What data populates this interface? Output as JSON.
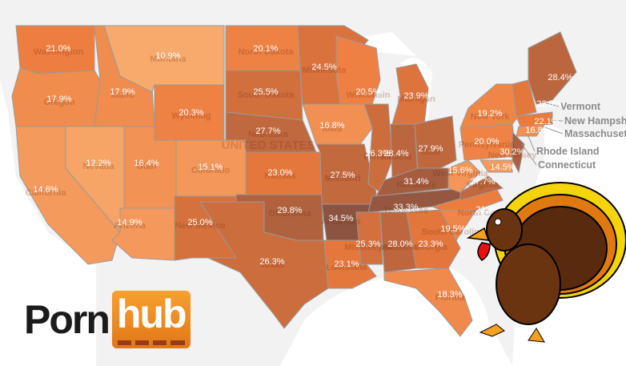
{
  "map": {
    "country_label": "UNITED STATES",
    "color_scale": {
      "low": "#f8aa6d",
      "mid": "#ec7a3c",
      "high": "#8c5340"
    },
    "states": [
      {
        "name": "Washington",
        "value": "21.0%"
      },
      {
        "name": "Oregon",
        "value": "17.9%"
      },
      {
        "name": "California",
        "value": "14.6%"
      },
      {
        "name": "Idaho",
        "value": "17.9%"
      },
      {
        "name": "Montana",
        "value": "10.9%"
      },
      {
        "name": "Wyoming",
        "value": "20.3%"
      },
      {
        "name": "Nevada",
        "value": "12.2%"
      },
      {
        "name": "Utah",
        "value": "16.4%"
      },
      {
        "name": "Colorado",
        "value": "15.1%"
      },
      {
        "name": "Arizona",
        "value": "14.9%"
      },
      {
        "name": "New Mexico",
        "value": "25.0%"
      },
      {
        "name": "North Dakota",
        "value": "20.1%"
      },
      {
        "name": "South Dakota",
        "value": "25.5%"
      },
      {
        "name": "Nebraska",
        "value": "27.7%"
      },
      {
        "name": "Kansas",
        "value": "23.0%"
      },
      {
        "name": "Oklahoma",
        "value": "29.8%"
      },
      {
        "name": "Texas",
        "value": "26.3%"
      },
      {
        "name": "Minnesota",
        "value": "24.5%"
      },
      {
        "name": "Iowa",
        "value": "16.8%"
      },
      {
        "name": "Missouri",
        "value": "27.5%"
      },
      {
        "name": "Arkansas",
        "value": "34.5%"
      },
      {
        "name": "Louisiana",
        "value": "23.1%"
      },
      {
        "name": "Wisconsin",
        "value": "20.5%"
      },
      {
        "name": "Illinois",
        "value": "26.3%"
      },
      {
        "name": "Michigan",
        "value": "23.9%"
      },
      {
        "name": "Indiana",
        "value": "28.4%"
      },
      {
        "name": "Ohio",
        "value": "27.9%"
      },
      {
        "name": "Kentucky",
        "value": "31.4%"
      },
      {
        "name": "Tennessee",
        "value": "33.3%"
      },
      {
        "name": "Mississippi",
        "value": "25.3%"
      },
      {
        "name": "Alabama",
        "value": "28.0%"
      },
      {
        "name": "Georgia",
        "value": "23.3%"
      },
      {
        "name": "Florida",
        "value": "18.3%"
      },
      {
        "name": "South Carolina",
        "value": "19.5%"
      },
      {
        "name": "North Carolina",
        "value": "21.4%"
      },
      {
        "name": "Virginia",
        "value": "27.7%"
      },
      {
        "name": "West Virginia",
        "value": "15.6%"
      },
      {
        "name": "Pennsylvania",
        "value": "20.0%"
      },
      {
        "name": "New York",
        "value": "19.2%"
      },
      {
        "name": "Maryland",
        "value": "14.5%"
      },
      {
        "name": "New Jersey",
        "value": "30.2%"
      },
      {
        "name": "Vermont/New Hampshire",
        "value": "23.0%"
      },
      {
        "name": "Massachusetts",
        "value": "22.1%"
      },
      {
        "name": "Connecticut",
        "value": "16.8%"
      },
      {
        "name": "Maine",
        "value": "28.4%"
      }
    ],
    "callouts": [
      "Vermont",
      "New Hampshire",
      "Massachusetts",
      "Rhode Island",
      "Connecticut"
    ]
  },
  "logo": {
    "part1": "Porn",
    "part2": "hub"
  },
  "illustration": "turkey"
}
